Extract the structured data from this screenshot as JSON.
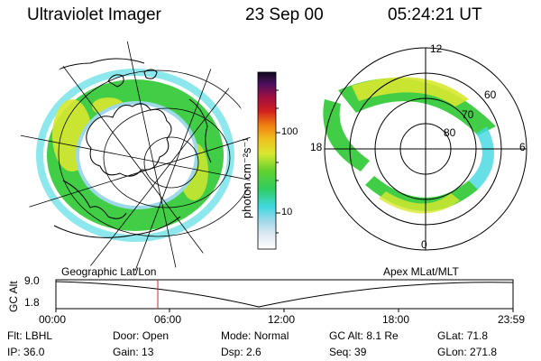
{
  "header": {
    "instrument": "Ultraviolet Imager",
    "date": "23 Sep 00",
    "time": "05:24:21 UT"
  },
  "colorbar": {
    "unit_label": "photon cm⁻²s⁻¹",
    "ticks": [
      "100",
      "10"
    ]
  },
  "polar_plot": {
    "mlt_labels": [
      "12",
      "18",
      "6",
      "0"
    ],
    "mlat_labels": [
      "60",
      "70",
      "80"
    ]
  },
  "panel_labels": {
    "left": "Geographic Lat/Lon",
    "right": "Apex MLat/MLT"
  },
  "alt_plot": {
    "axis_label": "GC Alt",
    "y_ticks": [
      "9.0",
      "1.8"
    ],
    "x_ticks": [
      "00:00",
      "06:00",
      "12:00",
      "18:00",
      "23:59"
    ]
  },
  "info_rows": [
    [
      {
        "label": "Flt:",
        "value": "LBHL"
      },
      {
        "label": "Door:",
        "value": "Open"
      },
      {
        "label": "Mode:",
        "value": "Normal"
      },
      {
        "label": "GC Alt:",
        "value": "8.1 Re"
      },
      {
        "label": "GLat:",
        "value": "71.8"
      }
    ],
    [
      {
        "label": "IP:",
        "value": "36.0"
      },
      {
        "label": "Gain:",
        "value": "13"
      },
      {
        "label": "Dsp:",
        "value": "2.6"
      },
      {
        "label": "Seq:",
        "value": "39"
      },
      {
        "label": "GLon:",
        "value": "271.8"
      }
    ]
  ],
  "colors": {
    "aurora_green": "#2ec832",
    "aurora_yellow": "#d8e830",
    "aurora_cyan": "#40d8e0",
    "marker_red": "#e02020"
  }
}
